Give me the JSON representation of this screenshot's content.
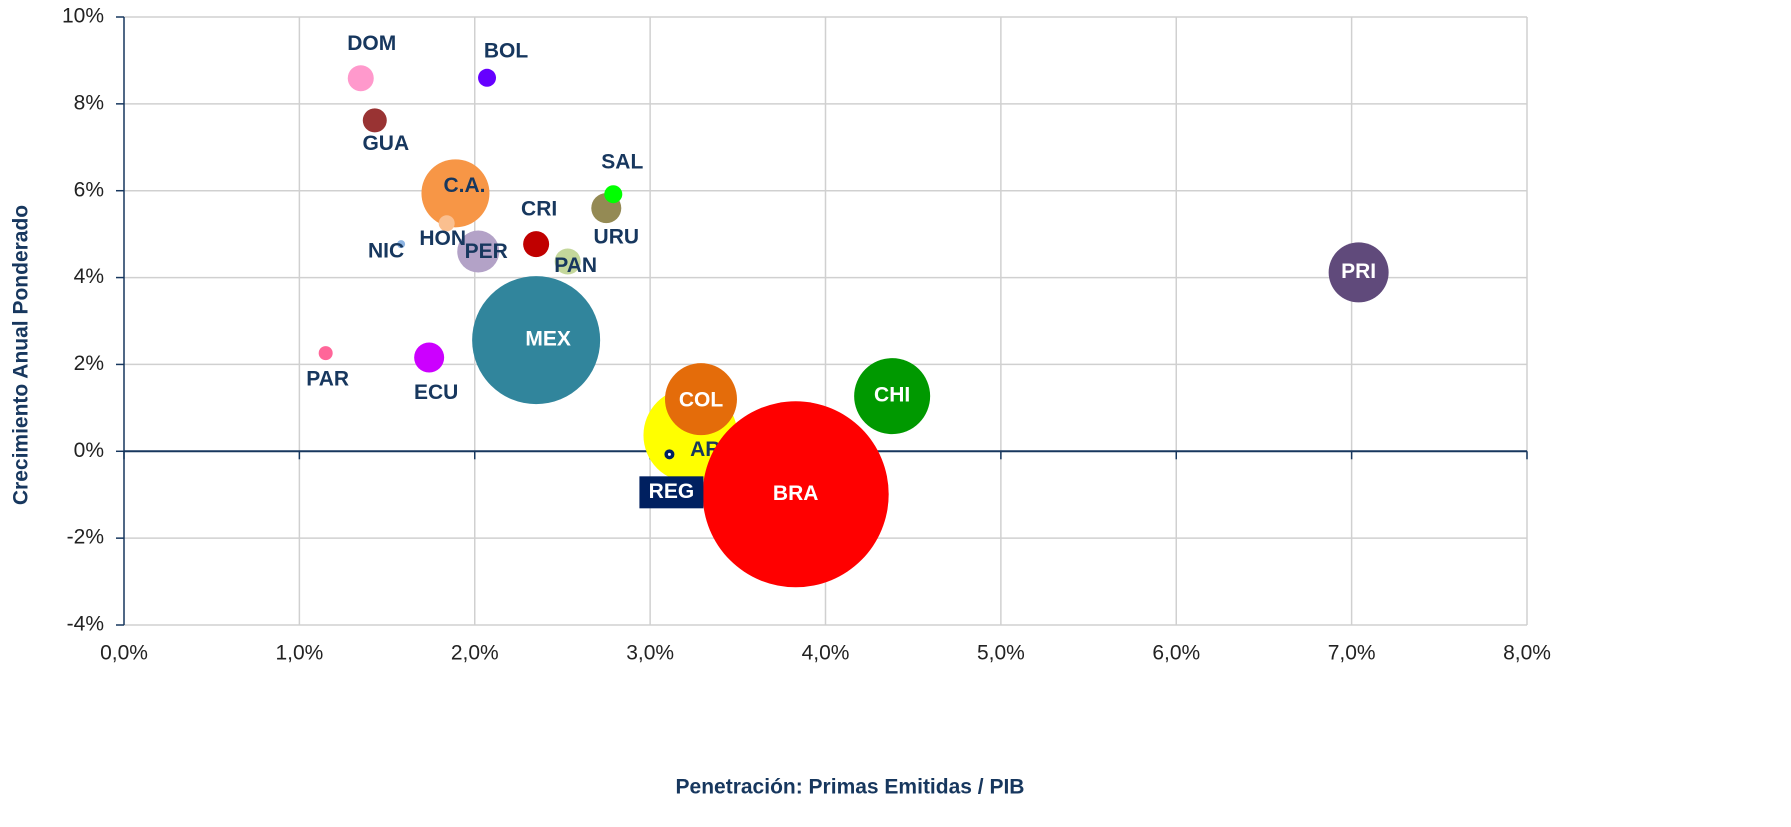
{
  "chart_data": {
    "type": "bubble",
    "x_label": "Penetración: Primas Emitidas / PIB",
    "y_label": "Crecimiento Anual Ponderado",
    "xlim": [
      0,
      8
    ],
    "ylim": [
      -4,
      10
    ],
    "xticks": [
      {
        "value": 0,
        "label": "0,0%"
      },
      {
        "value": 1,
        "label": "1,0%"
      },
      {
        "value": 2,
        "label": "2,0%"
      },
      {
        "value": 3,
        "label": "3,0%"
      },
      {
        "value": 4,
        "label": "4,0%"
      },
      {
        "value": 5,
        "label": "5,0%"
      },
      {
        "value": 6,
        "label": "6,0%"
      },
      {
        "value": 7,
        "label": "7,0%"
      },
      {
        "value": 8,
        "label": "8,0%"
      }
    ],
    "yticks": [
      {
        "value": -4,
        "label": "-4%"
      },
      {
        "value": -2,
        "label": "-2%"
      },
      {
        "value": 0,
        "label": "0%"
      },
      {
        "value": 2,
        "label": "2%"
      },
      {
        "value": 4,
        "label": "4%"
      },
      {
        "value": 6,
        "label": "6%"
      },
      {
        "value": 8,
        "label": "8%"
      },
      {
        "value": 10,
        "label": "10%"
      }
    ],
    "grid": true,
    "points": [
      {
        "label": "MEX",
        "x": 2.35,
        "y": 2.56,
        "size": 40.96,
        "color": "#31859c"
      },
      {
        "label": "ARG",
        "x": 3.23,
        "y": 0.37,
        "size": 22.09,
        "color": "#ffff00"
      },
      {
        "label": "BRA",
        "x": 3.83,
        "y": -0.99,
        "size": 86.49,
        "color": "#ff0000"
      },
      {
        "label": "COL",
        "x": 3.29,
        "y": 1.2,
        "size": 12.96,
        "color": "#e46c0a"
      },
      {
        "label": "CHI",
        "x": 4.38,
        "y": 1.27,
        "size": 14.44,
        "color": "#009900"
      },
      {
        "label": "PRI",
        "x": 7.04,
        "y": 4.12,
        "size": 9,
        "color": "#604a7b"
      },
      {
        "label": "C.A.",
        "x": 1.89,
        "y": 5.94,
        "size": 11.56,
        "color": "#f79646"
      },
      {
        "label": "PER",
        "x": 2.02,
        "y": 4.6,
        "size": 4.41,
        "color": "#b3a2c7"
      },
      {
        "label": "DOM",
        "x": 1.35,
        "y": 8.59,
        "size": 1.69,
        "color": "#ff99cc"
      },
      {
        "label": "BOL",
        "x": 2.07,
        "y": 8.6,
        "size": 0.81,
        "color": "#6600ff"
      },
      {
        "label": "GUA",
        "x": 1.43,
        "y": 7.62,
        "size": 1.44,
        "color": "#993333"
      },
      {
        "label": "URU",
        "x": 2.75,
        "y": 5.6,
        "size": 2.25,
        "color": "#948a54"
      },
      {
        "label": "SAL",
        "x": 2.79,
        "y": 5.92,
        "size": 0.81,
        "color": "#00ff00"
      },
      {
        "label": "HON",
        "x": 1.84,
        "y": 5.25,
        "size": 0.64,
        "color": "#fabf8f"
      },
      {
        "label": "CRI",
        "x": 2.35,
        "y": 4.77,
        "size": 1.69,
        "color": "#c00000"
      },
      {
        "label": "NIC",
        "x": 1.58,
        "y": 4.77,
        "size": 0.16,
        "color": "#8db4e2"
      },
      {
        "label": "PAN",
        "x": 2.53,
        "y": 4.37,
        "size": 1.69,
        "color": "#c4d79b"
      },
      {
        "label": "PAR",
        "x": 1.15,
        "y": 2.26,
        "size": 0.49,
        "color": "#ff6699"
      },
      {
        "label": "ECU",
        "x": 1.74,
        "y": 2.16,
        "size": 2.25,
        "color": "#cc00ff"
      },
      {
        "label": "REG",
        "x": 3.11,
        "y": -0.07,
        "size": 0.25,
        "color": "#002060"
      }
    ]
  }
}
